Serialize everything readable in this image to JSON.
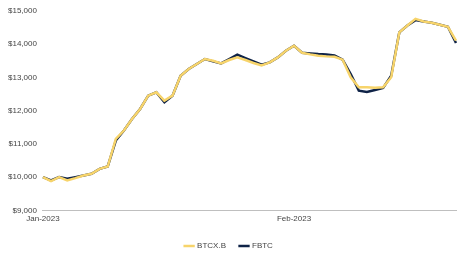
{
  "chart_data": {
    "type": "line",
    "categories": [
      "Jan-2023",
      null,
      null,
      null,
      null,
      null,
      null,
      null,
      null,
      null,
      null,
      null,
      null,
      null,
      null,
      null,
      null,
      null,
      null,
      null,
      null,
      null,
      null,
      null,
      null,
      null,
      null,
      null,
      null,
      null,
      null,
      "Feb-2023",
      null,
      null,
      null,
      null,
      null,
      null,
      null,
      null,
      null,
      null,
      null,
      null,
      null,
      null,
      null,
      null,
      null,
      null,
      null,
      null
    ],
    "series": [
      {
        "name": "BTCX.B",
        "color": "#f7d46b",
        "values": [
          10000,
          9880,
          10000,
          9900,
          9970,
          10050,
          10100,
          10250,
          10320,
          11150,
          11400,
          11750,
          12050,
          12450,
          12550,
          12300,
          12450,
          13050,
          13250,
          13400,
          13550,
          13500,
          13420,
          13520,
          13600,
          13520,
          13430,
          13360,
          13450,
          13600,
          13800,
          13950,
          13740,
          13690,
          13650,
          13630,
          13620,
          13530,
          13000,
          12700,
          12700,
          12690,
          12700,
          13000,
          14350,
          14560,
          14760,
          14680,
          14640,
          14580,
          14520,
          14100
        ]
      },
      {
        "name": "FBTC",
        "color": "#0f2347",
        "values": [
          10000,
          9900,
          10000,
          9950,
          10000,
          10050,
          10100,
          10250,
          10320,
          11100,
          11400,
          11750,
          12050,
          12450,
          12550,
          12250,
          12450,
          13050,
          13250,
          13400,
          13550,
          13480,
          13420,
          13550,
          13680,
          13580,
          13480,
          13380,
          13450,
          13600,
          13800,
          13950,
          13740,
          13720,
          13700,
          13690,
          13660,
          13530,
          13100,
          12600,
          12560,
          12620,
          12680,
          13050,
          14350,
          14560,
          14720,
          14680,
          14640,
          14580,
          14520,
          14030
        ]
      }
    ],
    "ylim": [
      9000,
      15000
    ],
    "yticks": [
      {
        "value": 9000,
        "label": "$9,000"
      },
      {
        "value": 10000,
        "label": "$10,000"
      },
      {
        "value": 11000,
        "label": "$11,000"
      },
      {
        "value": 12000,
        "label": "$12,000"
      },
      {
        "value": 13000,
        "label": "$13,000"
      },
      {
        "value": 14000,
        "label": "$14,000"
      },
      {
        "value": 15000,
        "label": "$15,000"
      }
    ],
    "grid": false,
    "legend": "bottom"
  }
}
